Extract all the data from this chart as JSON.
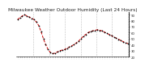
{
  "title": "Milwaukee Weather Outdoor Humidity (Last 24 Hours)",
  "y_values": [
    82,
    85,
    88,
    90,
    88,
    86,
    84,
    82,
    78,
    72,
    62,
    50,
    40,
    32,
    27,
    25,
    26,
    28,
    30,
    31,
    32,
    34,
    36,
    38,
    40,
    43,
    46,
    50,
    54,
    57,
    60,
    62,
    63,
    64,
    65,
    64,
    63,
    61,
    59,
    57,
    55,
    53,
    51,
    49,
    47,
    45,
    43,
    42
  ],
  "line_color": "#cc0000",
  "marker_color": "#000000",
  "bg_color": "#ffffff",
  "grid_color": "#888888",
  "ylim": [
    20,
    95
  ],
  "ytick_vals": [
    90,
    80,
    70,
    60,
    50,
    40,
    30,
    20
  ],
  "title_fontsize": 4.2,
  "title_color": "#222222",
  "vgrid_count": 7
}
